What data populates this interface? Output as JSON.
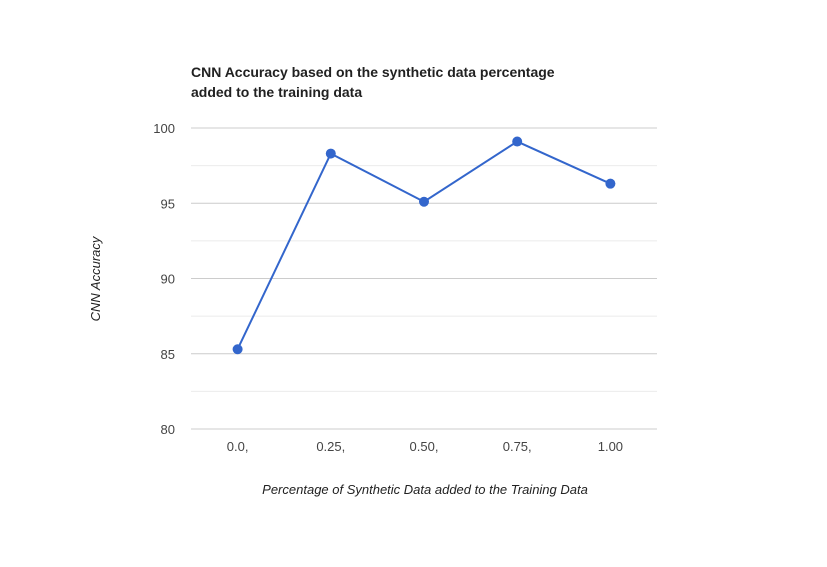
{
  "chart_data": {
    "type": "line",
    "title_lines": [
      "CNN Accuracy based on the synthetic data percentage",
      "added to the training data"
    ],
    "xlabel": "Percentage of Synthetic Data added to the Training Data",
    "ylabel": "CNN Accuracy",
    "categories": [
      "0.0,",
      "0.25,",
      "0.50,",
      "0.75,",
      "1.00"
    ],
    "series": [
      {
        "values": [
          85.3,
          98.3,
          95.1,
          99.1,
          96.3
        ]
      }
    ],
    "ylim": [
      80,
      100
    ],
    "yticks": [
      "80",
      "85",
      "90",
      "95",
      "100"
    ],
    "grid": true,
    "color": "#3366cc"
  }
}
